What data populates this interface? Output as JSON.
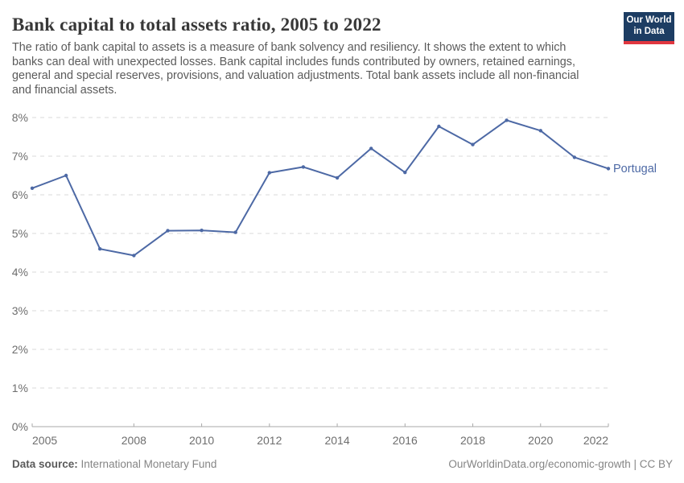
{
  "header": {
    "title": "Bank capital to total assets ratio, 2005 to 2022",
    "subtitle": "The ratio of bank capital to assets is a measure of bank solvency and resiliency. It shows the extent to which\nbanks can deal with unexpected losses. Bank capital includes funds contributed by owners, retained earnings,\ngeneral and special reserves, provisions, and valuation adjustments. Total bank assets include all non-financial\nand financial assets.",
    "logo": {
      "line1": "Our World",
      "line2": "in Data",
      "bg_color": "#1d3d63",
      "accent_color": "#e0373f"
    }
  },
  "chart_data": {
    "type": "line",
    "title": "Bank capital to total assets ratio, 2005 to 2022",
    "xlabel": "",
    "ylabel": "",
    "x": [
      2005,
      2006,
      2007,
      2008,
      2009,
      2010,
      2011,
      2012,
      2013,
      2014,
      2015,
      2016,
      2017,
      2018,
      2019,
      2020,
      2021,
      2022
    ],
    "series": [
      {
        "name": "Portugal",
        "color": "#4d69a5",
        "values": [
          6.17,
          6.5,
          4.6,
          4.43,
          5.07,
          5.08,
          5.03,
          6.57,
          6.72,
          6.44,
          7.2,
          6.58,
          7.77,
          7.3,
          7.93,
          7.66,
          6.97,
          6.68
        ]
      }
    ],
    "ylim": [
      0,
      8
    ],
    "y_ticks": [
      0,
      1,
      2,
      3,
      4,
      5,
      6,
      7,
      8
    ],
    "y_tick_suffix": "%",
    "x_ticks": [
      2005,
      2008,
      2010,
      2012,
      2014,
      2016,
      2018,
      2020,
      2022
    ],
    "grid": "horizontal-dashed",
    "legend_position": "end-of-line-label",
    "marker": "dot"
  },
  "footer": {
    "source_label": "Data source:",
    "source_value": "International Monetary Fund",
    "attribution": "OurWorldinData.org/economic-growth | CC BY"
  },
  "colors": {
    "line": "#4d69a5",
    "grid": "#d9d9d9",
    "axis": "#a9a9a9",
    "tick_text": "#6e6e6e",
    "title_text": "#383838",
    "subtitle_text": "#5b5b5b"
  }
}
